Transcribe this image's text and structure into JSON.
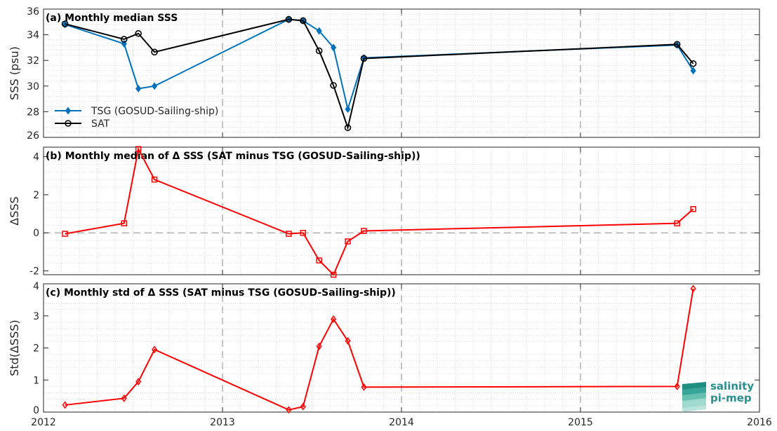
{
  "chart_data": [
    {
      "type": "line",
      "title": "(a) Monthly median SSS",
      "ylabel": "SSS (psu)",
      "xlim": [
        2012,
        2016
      ],
      "ylim": [
        26,
        36
      ],
      "yticks": [
        26,
        28,
        30,
        32,
        34,
        36
      ],
      "grid": true,
      "legend_placement": "lower-left",
      "series": [
        {
          "name": "TSG (GOSUD-Sailing-ship)",
          "color": "#0072BD",
          "marker": "diamond",
          "x": [
            2012.12,
            2012.45,
            2012.53,
            2012.62,
            2013.37,
            2013.45,
            2013.54,
            2013.62,
            2013.7,
            2013.79,
            2015.54,
            2015.63
          ],
          "y": [
            34.8,
            33.3,
            29.8,
            30.0,
            35.2,
            35.1,
            34.3,
            33.0,
            28.2,
            32.2,
            33.2,
            31.2
          ]
        },
        {
          "name": "SAT",
          "color": "#000000",
          "marker": "circle",
          "x": [
            2012.12,
            2012.45,
            2012.53,
            2012.62,
            2013.37,
            2013.45,
            2013.54,
            2013.62,
            2013.7,
            2013.79,
            2015.54,
            2015.63
          ],
          "y": [
            34.85,
            33.65,
            34.1,
            32.65,
            35.2,
            35.1,
            32.75,
            30.05,
            26.75,
            32.15,
            33.25,
            31.75
          ]
        }
      ]
    },
    {
      "type": "line",
      "title": "(b) Monthly median of Δ SSS (SAT minus TSG (GOSUD-Sailing-ship))",
      "ylabel": "ΔSSS",
      "xlim": [
        2012,
        2016
      ],
      "ylim": [
        -2.2,
        4.5
      ],
      "yticks": [
        -2,
        0,
        2,
        4
      ],
      "grid": true,
      "zero_line": true,
      "series": [
        {
          "color": "#FF0000",
          "marker": "square",
          "x": [
            2012.12,
            2012.45,
            2012.53,
            2012.62,
            2013.37,
            2013.45,
            2013.54,
            2013.62,
            2013.7,
            2013.79,
            2015.54,
            2015.63
          ],
          "y": [
            -0.05,
            0.5,
            4.4,
            2.8,
            -0.05,
            0.0,
            -1.45,
            -2.2,
            -0.45,
            0.1,
            0.5,
            1.25
          ]
        }
      ]
    },
    {
      "type": "line",
      "title": "(c) Monthly std of Δ SSS (SAT minus TSG (GOSUD-Sailing-ship))",
      "ylabel": "Std(ΔSSS)",
      "xlim": [
        2012,
        2016
      ],
      "ylim": [
        0,
        4
      ],
      "yticks": [
        0,
        1,
        2,
        3,
        4
      ],
      "xticks": [
        2012,
        2013,
        2014,
        2015,
        2016
      ],
      "grid": true,
      "series": [
        {
          "color": "#FF0000",
          "marker": "diamond",
          "x": [
            2012.12,
            2012.45,
            2012.53,
            2012.62,
            2013.37,
            2013.45,
            2013.54,
            2013.62,
            2013.7,
            2013.79,
            2015.54,
            2015.63
          ],
          "y": [
            0.22,
            0.43,
            0.95,
            1.95,
            0.07,
            0.17,
            2.05,
            2.9,
            2.22,
            0.78,
            0.8,
            3.85
          ]
        }
      ]
    }
  ],
  "logo": {
    "line1": "salinity",
    "line2": "pi-mep",
    "icon": "layered-waves-logo-icon"
  }
}
